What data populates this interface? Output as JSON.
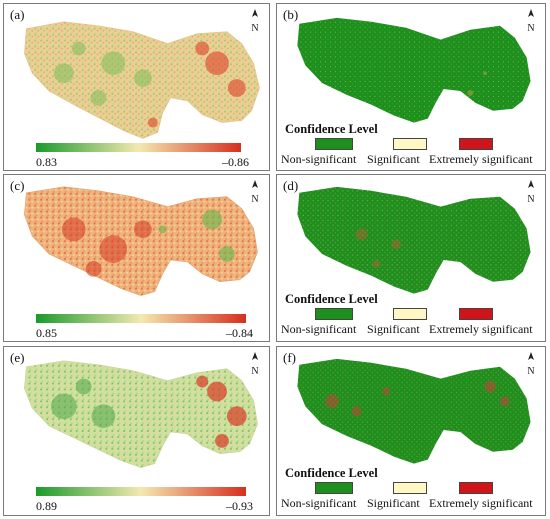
{
  "colors": {
    "negative_high": "#d62f1f",
    "neutral": "#f3e2a8",
    "positive_high": "#1b9a2b",
    "nonsig": "#1d8f1d",
    "sig": "#fff8c4",
    "extreme": "#d1141a"
  },
  "panels": [
    {
      "label": "(a)",
      "kind": "correlation",
      "colorbar": {
        "min_label": "0.83",
        "max_label": "–0.86"
      }
    },
    {
      "label": "(b)",
      "kind": "significance"
    },
    {
      "label": "(c)",
      "kind": "correlation",
      "colorbar": {
        "min_label": "0.85",
        "max_label": "–0.84"
      }
    },
    {
      "label": "(d)",
      "kind": "significance"
    },
    {
      "label": "(e)",
      "kind": "correlation",
      "colorbar": {
        "min_label": "0.89",
        "max_label": "–0.93"
      }
    },
    {
      "label": "(f)",
      "kind": "significance"
    }
  ],
  "legend": {
    "title": "Confidence Level",
    "items": [
      {
        "label": "Non-significant",
        "color": "#1d8f1d"
      },
      {
        "label": "Significant",
        "color": "#fff8c4"
      },
      {
        "label": "Extremely significant",
        "color": "#d1141a"
      }
    ]
  },
  "north_arrow": {
    "icon": "north-arrow-icon"
  }
}
